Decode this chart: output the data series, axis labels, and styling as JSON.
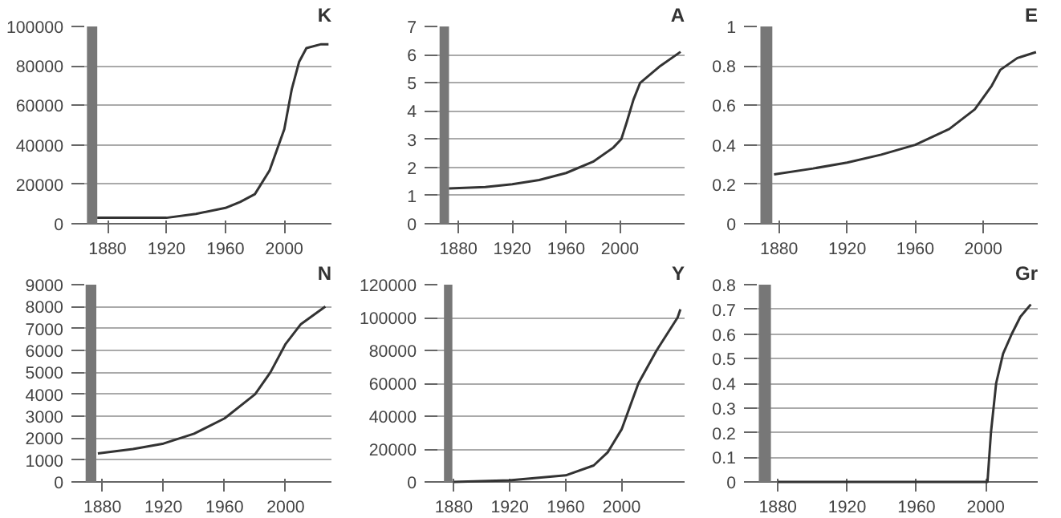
{
  "chart_data": [
    {
      "type": "line",
      "title": "K",
      "x": [
        1873,
        1900,
        1920,
        1940,
        1960,
        1970,
        1980,
        1990,
        2000,
        2005,
        2010,
        2015,
        2025,
        2030
      ],
      "values": [
        3000,
        3000,
        3000,
        5000,
        8000,
        11000,
        15000,
        27000,
        48000,
        68000,
        82000,
        89000,
        91000,
        91000
      ],
      "color": "#333333",
      "xlim": [
        1862,
        2032
      ],
      "ylim": [
        0,
        100000
      ],
      "xticks": [
        1880,
        1920,
        1960,
        2000
      ],
      "yticks": [
        0,
        20000,
        40000,
        60000,
        80000,
        100000
      ],
      "grid": "y",
      "bands": [
        {
          "axis": "x",
          "from": 1866,
          "to": 1873,
          "color": "#777777"
        }
      ]
    },
    {
      "type": "line",
      "title": "A",
      "x": [
        1873,
        1900,
        1920,
        1940,
        1960,
        1980,
        1995,
        2001,
        2005,
        2010,
        2015,
        2030,
        2045
      ],
      "values": [
        1.25,
        1.3,
        1.4,
        1.55,
        1.8,
        2.2,
        2.7,
        3.0,
        3.6,
        4.4,
        5.0,
        5.6,
        6.1
      ],
      "color": "#333333",
      "xlim": [
        1862,
        2048
      ],
      "ylim": [
        0,
        7
      ],
      "xticks": [
        1880,
        1920,
        1960,
        2000
      ],
      "yticks": [
        0,
        1,
        2,
        3,
        4,
        5,
        6,
        7
      ],
      "grid": "y",
      "bands": [
        {
          "axis": "x",
          "from": 1866,
          "to": 1873,
          "color": "#777777"
        }
      ]
    },
    {
      "type": "line",
      "title": "E",
      "x": [
        1877,
        1900,
        1920,
        1940,
        1960,
        1980,
        1995,
        2005,
        2010,
        2020,
        2031
      ],
      "values": [
        0.25,
        0.28,
        0.31,
        0.35,
        0.4,
        0.48,
        0.58,
        0.7,
        0.78,
        0.84,
        0.87
      ],
      "color": "#333333",
      "xlim": [
        1865,
        2032
      ],
      "ylim": [
        0,
        1
      ],
      "xticks": [
        1880,
        1920,
        1960,
        2000
      ],
      "yticks": [
        0,
        0.2,
        0.4,
        0.6,
        0.8,
        1
      ],
      "grid": "y",
      "bands": [
        {
          "axis": "x",
          "from": 1869,
          "to": 1876,
          "color": "#777777"
        }
      ]
    },
    {
      "type": "line",
      "title": "N",
      "x": [
        1877,
        1900,
        1920,
        1940,
        1960,
        1980,
        1990,
        2000,
        2010,
        2026
      ],
      "values": [
        1300,
        1500,
        1750,
        2200,
        2900,
        4000,
        5000,
        6300,
        7200,
        8000
      ],
      "color": "#333333",
      "xlim": [
        1866,
        2030
      ],
      "ylim": [
        0,
        9000
      ],
      "xticks": [
        1880,
        1920,
        1960,
        2000
      ],
      "yticks": [
        0,
        1000,
        2000,
        3000,
        4000,
        5000,
        6000,
        7000,
        8000,
        9000
      ],
      "grid": "y",
      "bands": [
        {
          "axis": "x",
          "from": 1869,
          "to": 1876,
          "color": "#777777"
        }
      ]
    },
    {
      "type": "line",
      "title": "Y",
      "x": [
        1880,
        1920,
        1960,
        1980,
        1990,
        2000,
        2012,
        2025,
        2040,
        2042
      ],
      "values": [
        0,
        1000,
        4000,
        10000,
        18000,
        32000,
        60000,
        80000,
        100000,
        105000
      ],
      "color": "#333333",
      "xlim": [
        1866,
        2045
      ],
      "ylim": [
        0,
        120000
      ],
      "xticks": [
        1880,
        1920,
        1960,
        2000
      ],
      "yticks": [
        0,
        20000,
        40000,
        60000,
        80000,
        100000,
        120000
      ],
      "grid": "y",
      "bands": [
        {
          "axis": "x",
          "from": 1873,
          "to": 1879,
          "color": "#777777"
        }
      ]
    },
    {
      "type": "line",
      "title": "Gr",
      "x": [
        1880,
        1920,
        1960,
        2001,
        2003,
        2006,
        2010,
        2015,
        2020,
        2026
      ],
      "values": [
        0,
        0,
        0,
        0,
        0.2,
        0.4,
        0.52,
        0.6,
        0.67,
        0.72
      ],
      "color": "#333333",
      "xlim": [
        1866,
        2030
      ],
      "ylim": [
        0,
        0.8
      ],
      "xticks": [
        1880,
        1920,
        1960,
        2000
      ],
      "yticks": [
        0,
        0.1,
        0.2,
        0.3,
        0.4,
        0.5,
        0.6,
        0.7,
        0.8
      ],
      "grid": "y",
      "bands": [
        {
          "axis": "x",
          "from": 1869,
          "to": 1876,
          "color": "#777777"
        }
      ]
    }
  ]
}
